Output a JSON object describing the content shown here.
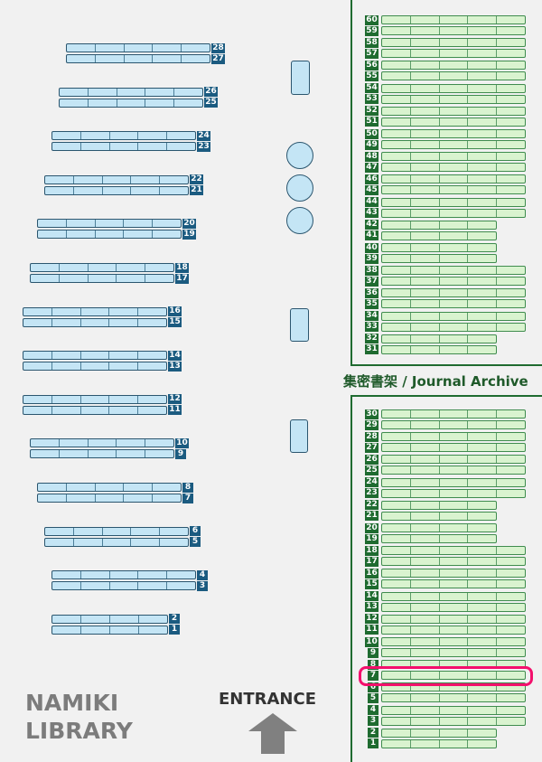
{
  "library_name": [
    "NAMIKI",
    "LIBRARY"
  ],
  "entrance_label": "ENTRANCE",
  "archive_label": "集密書架 / Journal Archive",
  "highlighted_shelf": {
    "section": "archive",
    "number": 7
  },
  "colors": {
    "main_shelf_fill": "#c4e5f5",
    "main_shelf_label": "#1b5b80",
    "archive_shelf_fill": "#d9f3cf",
    "archive_shelf_label": "#1f6b30",
    "highlight": "#f3106c"
  },
  "main_shelves": [
    {
      "pair": [
        28,
        27
      ],
      "cells": 5
    },
    {
      "pair": [
        26,
        25
      ],
      "cells": 5
    },
    {
      "pair": [
        24,
        23
      ],
      "cells": 5
    },
    {
      "pair": [
        22,
        21
      ],
      "cells": 5
    },
    {
      "pair": [
        20,
        19
      ],
      "cells": 5
    },
    {
      "pair": [
        18,
        17
      ],
      "cells": 5
    },
    {
      "pair": [
        16,
        15
      ],
      "cells": 5
    },
    {
      "pair": [
        14,
        13
      ],
      "cells": 5
    },
    {
      "pair": [
        12,
        11
      ],
      "cells": 5
    },
    {
      "pair": [
        10,
        9
      ],
      "cells": 5
    },
    {
      "pair": [
        8,
        7
      ],
      "cells": 5
    },
    {
      "pair": [
        6,
        5
      ],
      "cells": 5
    },
    {
      "pair": [
        4,
        3
      ],
      "cells": 5
    },
    {
      "pair": [
        2,
        1
      ],
      "cells": 4
    }
  ],
  "reading_tables": [
    "rectangle",
    "round",
    "round",
    "round",
    "rectangle",
    "rectangle"
  ],
  "archive_upper": [
    {
      "pair": [
        60,
        59
      ],
      "cells": 5
    },
    {
      "pair": [
        58,
        57
      ],
      "cells": 5
    },
    {
      "pair": [
        56,
        55
      ],
      "cells": 5
    },
    {
      "pair": [
        54,
        53
      ],
      "cells": 5
    },
    {
      "pair": [
        52,
        51
      ],
      "cells": 5
    },
    {
      "pair": [
        50,
        49
      ],
      "cells": 5
    },
    {
      "pair": [
        48,
        47
      ],
      "cells": 5
    },
    {
      "pair": [
        46,
        45
      ],
      "cells": 5
    },
    {
      "pair": [
        44,
        43
      ],
      "cells": 5
    },
    {
      "pair": [
        42,
        41
      ],
      "cells": 4
    },
    {
      "pair": [
        40,
        39
      ],
      "cells": 4
    },
    {
      "pair": [
        38,
        37
      ],
      "cells": 5
    },
    {
      "pair": [
        36,
        35
      ],
      "cells": 5
    },
    {
      "pair": [
        34,
        33
      ],
      "cells": 5
    },
    {
      "pair": [
        32,
        31
      ],
      "cells": 4
    }
  ],
  "archive_lower": [
    {
      "pair": [
        30,
        29
      ],
      "cells": 5
    },
    {
      "pair": [
        28,
        27
      ],
      "cells": 5
    },
    {
      "pair": [
        26,
        25
      ],
      "cells": 5
    },
    {
      "pair": [
        24,
        23
      ],
      "cells": 5
    },
    {
      "pair": [
        22,
        21
      ],
      "cells": 4
    },
    {
      "pair": [
        20,
        19
      ],
      "cells": 4
    },
    {
      "pair": [
        18,
        17
      ],
      "cells": 5
    },
    {
      "pair": [
        16,
        15
      ],
      "cells": 5
    },
    {
      "pair": [
        14,
        13
      ],
      "cells": 5
    },
    {
      "pair": [
        12,
        11
      ],
      "cells": 5
    },
    {
      "pair": [
        10,
        9
      ],
      "cells": 5
    },
    {
      "pair": [
        8,
        7
      ],
      "cells": 5
    },
    {
      "pair": [
        6,
        5
      ],
      "cells": 5
    },
    {
      "pair": [
        4,
        3
      ],
      "cells": 5
    },
    {
      "pair": [
        2,
        1
      ],
      "cells": 4
    }
  ]
}
